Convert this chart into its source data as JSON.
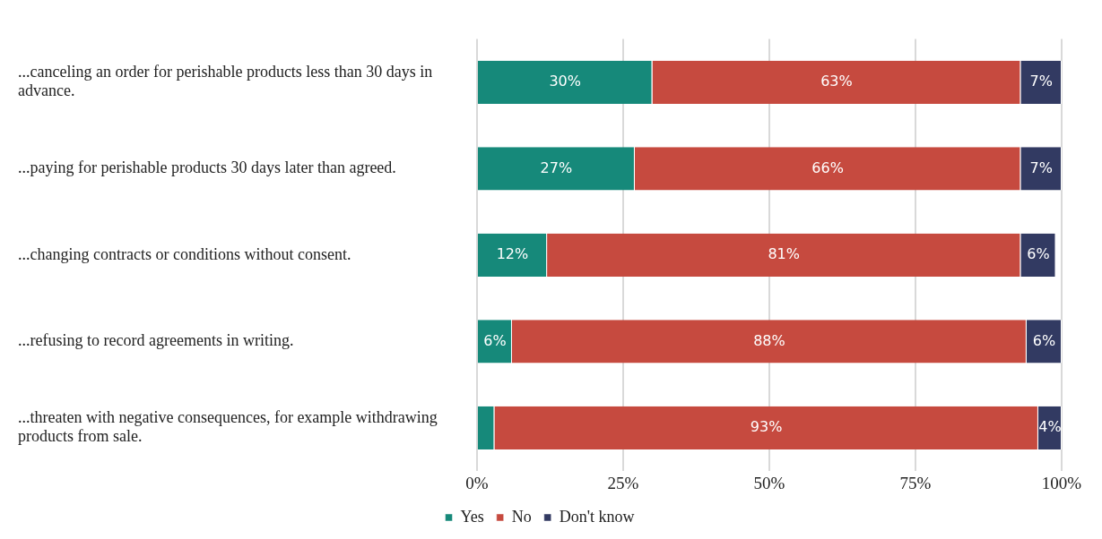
{
  "chart_data": {
    "type": "bar",
    "orientation": "horizontal",
    "stacked": true,
    "categories": [
      "...canceling an order for perishable products less than 30 days in advance.",
      "...paying for perishable products 30 days later than agreed.",
      "...changing contracts or conditions without consent.",
      "...refusing to record agreements in writing.",
      "...threaten with negative consequences, for example withdrawing products from sale."
    ],
    "series": [
      {
        "name": "Yes",
        "color": "#16897a",
        "values": [
          30,
          27,
          12,
          6,
          3
        ],
        "value_labels": [
          "30%",
          "27%",
          "12%",
          "6%",
          null
        ]
      },
      {
        "name": "No",
        "color": "#c64a3f",
        "values": [
          63,
          66,
          81,
          88,
          93
        ],
        "value_labels": [
          "63%",
          "66%",
          "81%",
          "88%",
          "93%"
        ]
      },
      {
        "name": "Don't know",
        "color": "#323a62",
        "values": [
          7,
          7,
          6,
          6,
          4
        ],
        "value_labels": [
          "7%",
          "7%",
          "6%",
          "6%",
          "4%"
        ]
      }
    ],
    "xlim": [
      0,
      100
    ],
    "xticks": [
      {
        "value": 0,
        "label": "0%"
      },
      {
        "value": 25,
        "label": "25%"
      },
      {
        "value": 50,
        "label": "50%"
      },
      {
        "value": 75,
        "label": "75%"
      },
      {
        "value": 100,
        "label": "100%"
      }
    ],
    "grid": "x",
    "legend": "bottom"
  }
}
